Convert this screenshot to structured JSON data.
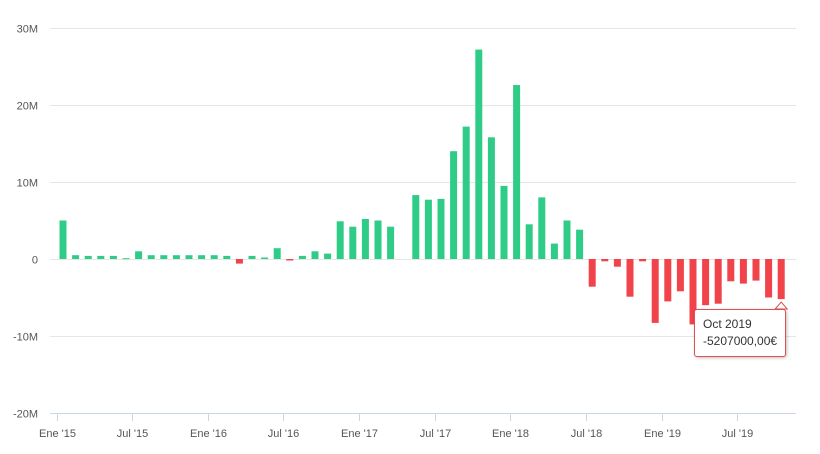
{
  "chart_data": {
    "type": "bar",
    "title": "",
    "xlabel": "",
    "ylabel": "",
    "ylim": [
      -20000000,
      30000000
    ],
    "y_ticks": [
      {
        "value": 30000000,
        "label": "30M"
      },
      {
        "value": 20000000,
        "label": "20M"
      },
      {
        "value": 10000000,
        "label": "10M"
      },
      {
        "value": 0,
        "label": "0"
      },
      {
        "value": -10000000,
        "label": "-10M"
      },
      {
        "value": -20000000,
        "label": "-20M"
      }
    ],
    "x_ticks": [
      {
        "index": 0,
        "label": "Ene '15"
      },
      {
        "index": 6,
        "label": "Jul '15"
      },
      {
        "index": 12,
        "label": "Ene '16"
      },
      {
        "index": 18,
        "label": "Jul '16"
      },
      {
        "index": 24,
        "label": "Ene '17"
      },
      {
        "index": 30,
        "label": "Jul '17"
      },
      {
        "index": 36,
        "label": "Ene '18"
      },
      {
        "index": 42,
        "label": "Jul '18"
      },
      {
        "index": 48,
        "label": "Ene '19"
      },
      {
        "index": 54,
        "label": "Jul '19"
      }
    ],
    "categories": [
      "2015-01",
      "2015-02",
      "2015-03",
      "2015-04",
      "2015-05",
      "2015-06",
      "2015-07",
      "2015-08",
      "2015-09",
      "2015-10",
      "2015-11",
      "2015-12",
      "2016-01",
      "2016-02",
      "2016-03",
      "2016-04",
      "2016-05",
      "2016-06",
      "2016-07",
      "2016-08",
      "2016-09",
      "2016-10",
      "2016-11",
      "2016-12",
      "2017-01",
      "2017-02",
      "2017-03",
      "2017-04",
      "2017-05",
      "2017-06",
      "2017-07",
      "2017-08",
      "2017-09",
      "2017-10",
      "2017-11",
      "2017-12",
      "2018-01",
      "2018-02",
      "2018-03",
      "2018-04",
      "2018-05",
      "2018-06",
      "2018-07",
      "2018-08",
      "2018-09",
      "2018-10",
      "2018-11",
      "2018-12",
      "2019-01",
      "2019-02",
      "2019-03",
      "2019-04",
      "2019-05",
      "2019-06",
      "2019-07",
      "2019-08",
      "2019-09",
      "2019-10"
    ],
    "values": [
      5000000,
      500000,
      400000,
      400000,
      400000,
      100000,
      1000000,
      500000,
      500000,
      500000,
      500000,
      500000,
      500000,
      400000,
      -600000,
      400000,
      200000,
      1400000,
      -200000,
      400000,
      1000000,
      700000,
      4900000,
      4200000,
      5200000,
      5000000,
      4200000,
      0,
      8300000,
      7700000,
      7800000,
      14000000,
      17200000,
      27200000,
      15800000,
      9500000,
      22600000,
      4500000,
      8000000,
      2000000,
      5000000,
      3800000,
      -3600000,
      -300000,
      -1000000,
      -4900000,
      -300000,
      -8300000,
      -5500000,
      -4200000,
      -8500000,
      -6000000,
      -5800000,
      -2900000,
      -3200000,
      -2800000,
      -5000000,
      -5207000
    ],
    "colors": {
      "positive": "#2ecc86",
      "negative": "#f0434a"
    },
    "grid": true,
    "legend": "none"
  },
  "tooltip": {
    "date": "Oct 2019",
    "value": "-5207000,00€"
  }
}
